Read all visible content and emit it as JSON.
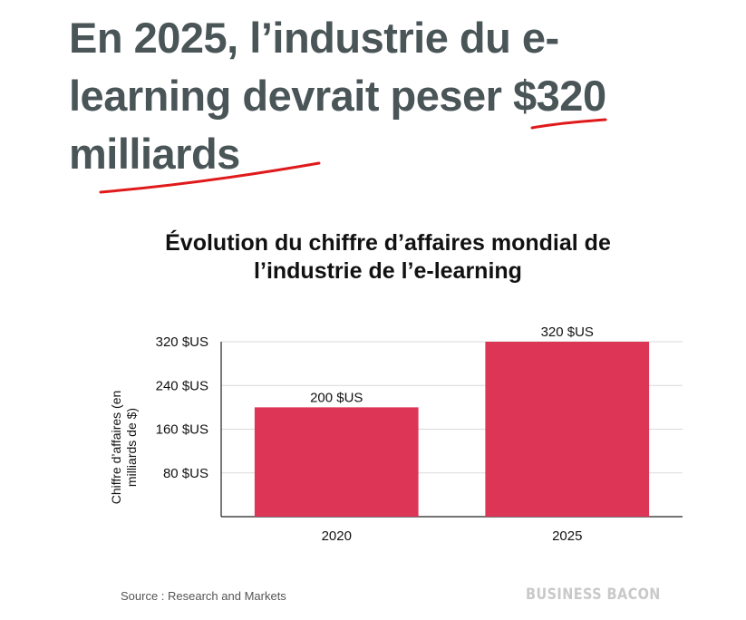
{
  "headline": {
    "line1": "En 2025, l’industrie du e-",
    "line2": "learning devrait peser $320",
    "line3": "milliards"
  },
  "colors": {
    "headline": "#4a5558",
    "bar": "#dc3556",
    "underline": "#e0191b"
  },
  "chart_data": {
    "type": "bar",
    "title_line1": "Évolution du chiffre d’affaires mondial de",
    "title_line2": "l’industrie de l’e-learning",
    "categories": [
      "2020",
      "2025"
    ],
    "values": [
      200,
      320
    ],
    "value_labels": [
      "200 $US",
      "320 $US"
    ],
    "ylabel_line1": "Chiffre d’affaires (en",
    "ylabel_line2": "milliards de $)",
    "ylim": [
      0,
      320
    ],
    "yticks": [
      80,
      160,
      240,
      320
    ],
    "ytick_labels": [
      "80 $US",
      "160 $US",
      "240 $US",
      "320 $US"
    ],
    "grid": true,
    "legend": "none"
  },
  "footer": {
    "source": "Source : Research and Markets",
    "brand": "BUSINESS BACON"
  }
}
